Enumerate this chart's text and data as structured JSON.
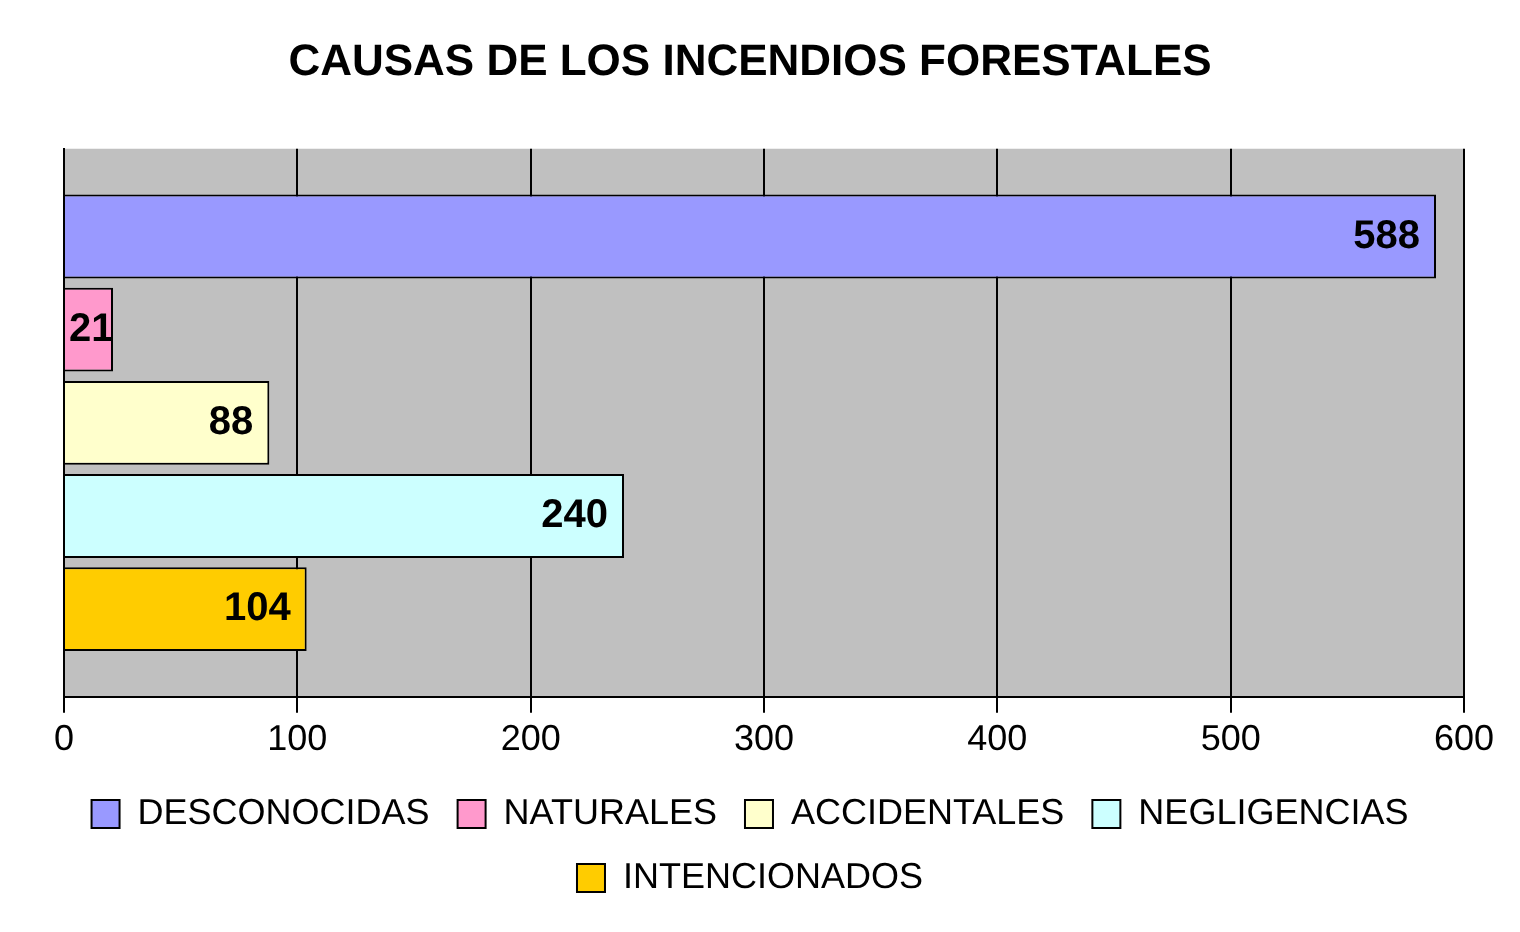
{
  "chart_data": {
    "type": "bar",
    "title": "CAUSAS DE LOS INCENDIOS FORESTALES",
    "orientation": "horizontal",
    "categories": [
      null
    ],
    "series": [
      {
        "name": "DESCONOCIDAS",
        "color": "#9999ff",
        "values": [
          588
        ]
      },
      {
        "name": "NATURALES",
        "color": "#ff99cc",
        "values": [
          21
        ]
      },
      {
        "name": "ACCIDENTALES",
        "color": "#ffffcc",
        "values": [
          88
        ]
      },
      {
        "name": "NEGLIGENCIAS",
        "color": "#ccffff",
        "values": [
          240
        ]
      },
      {
        "name": "INTENCIONADOS",
        "color": "#ffcc00",
        "values": [
          104
        ]
      }
    ],
    "xlim": [
      0,
      600
    ],
    "xticks": [
      0,
      100,
      200,
      300,
      400,
      500,
      600
    ],
    "grid": "x",
    "legend": "bottom",
    "data_labels": true
  }
}
